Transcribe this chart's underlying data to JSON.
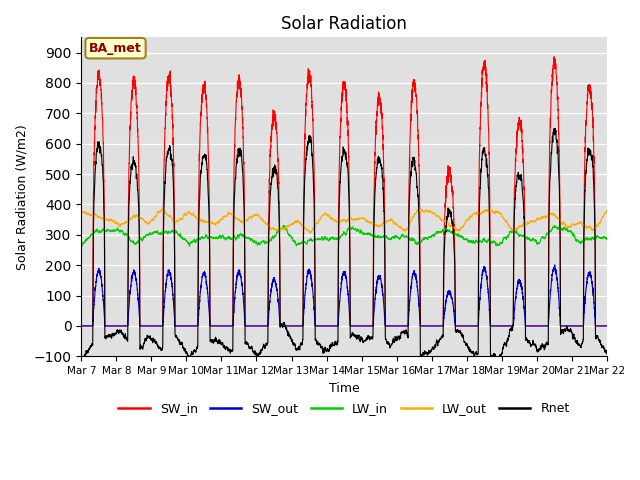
{
  "title": "Solar Radiation",
  "ylabel": "Solar Radiation (W/m2)",
  "xlabel": "Time",
  "ylim": [
    -100,
    950
  ],
  "yticks": [
    -100,
    0,
    100,
    200,
    300,
    400,
    500,
    600,
    700,
    800,
    900
  ],
  "n_days": 15,
  "start_day": 7,
  "colors": {
    "SW_in": "#ff0000",
    "SW_out": "#0000cc",
    "LW_in": "#00cc00",
    "LW_out": "#ffaa00",
    "Rnet": "#000000"
  },
  "annotation_text": "BA_met",
  "annotation_color": "#8b0000",
  "annotation_bg": "#ffffcc",
  "bg_color": "#e0e0e0",
  "n_points_per_day": 288
}
